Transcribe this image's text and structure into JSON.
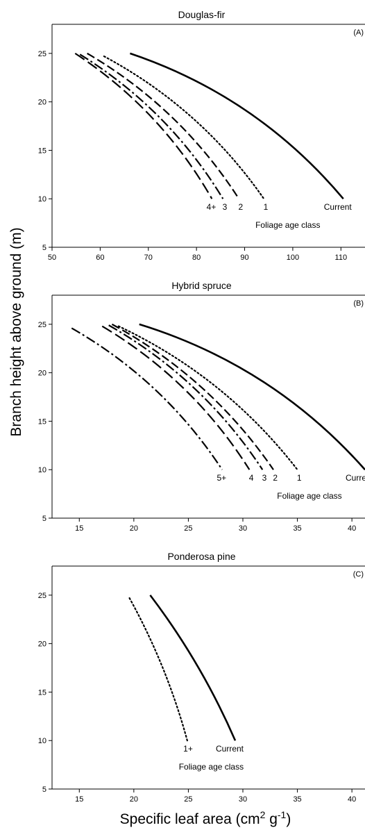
{
  "figure": {
    "ylabel": "Branch height above ground (m)",
    "xlabel_main": "Specific leaf area (cm",
    "xlabel_sup1": "2",
    "xlabel_mid": " g",
    "xlabel_sup2": "-1",
    "xlabel_end": ")"
  },
  "chart_data": [
    {
      "type": "line",
      "title": "Douglas-fir",
      "panel_label": "(A)",
      "annotation": "Foliage age class",
      "xlim": [
        50,
        115
      ],
      "ylim": [
        5,
        28
      ],
      "xticks": [
        50,
        60,
        70,
        80,
        90,
        100,
        110
      ],
      "yticks": [
        5,
        10,
        15,
        20,
        25
      ],
      "series": [
        {
          "name": "Current",
          "style": "solid",
          "x": [
            66.2,
            110.5
          ],
          "y": [
            25,
            10
          ],
          "curvature": 0.14
        },
        {
          "name": "1",
          "style": "dotted",
          "x": [
            60.8,
            94.0
          ],
          "y": [
            24.7,
            10
          ],
          "curvature": 0.12
        },
        {
          "name": "2",
          "style": "dashed",
          "x": [
            57.3,
            88.8
          ],
          "y": [
            25,
            10
          ],
          "curvature": 0.12
        },
        {
          "name": "3",
          "style": "dashdot",
          "x": [
            55.8,
            85.5
          ],
          "y": [
            24.9,
            10
          ],
          "curvature": 0.12
        },
        {
          "name": "4+",
          "style": "longdash",
          "x": [
            54.8,
            83.2
          ],
          "y": [
            25,
            10
          ],
          "curvature": 0.12
        }
      ]
    },
    {
      "type": "line",
      "title": "Hybrid spruce",
      "panel_label": "(B)",
      "annotation": "Foliage age class",
      "xlim": [
        12.5,
        41.2
      ],
      "ylim": [
        5,
        28
      ],
      "xticks": [
        15,
        20,
        25,
        30,
        35,
        40
      ],
      "yticks": [
        5,
        10,
        15,
        20,
        25
      ],
      "series": [
        {
          "name": "Current",
          "style": "solid",
          "x": [
            20.5,
            41.2
          ],
          "y": [
            25,
            10
          ],
          "curvature": 0.14
        },
        {
          "name": "1",
          "style": "dotted",
          "x": [
            18.6,
            35.0
          ],
          "y": [
            24.8,
            10
          ],
          "curvature": 0.12
        },
        {
          "name": "2",
          "style": "dashed",
          "x": [
            18.0,
            32.8
          ],
          "y": [
            25,
            10
          ],
          "curvature": 0.12
        },
        {
          "name": "3",
          "style": "dashdot",
          "x": [
            17.7,
            31.8
          ],
          "y": [
            24.9,
            10
          ],
          "curvature": 0.12
        },
        {
          "name": "4",
          "style": "longdash",
          "x": [
            17.1,
            30.6
          ],
          "y": [
            24.8,
            10
          ],
          "curvature": 0.12
        },
        {
          "name": "5+",
          "style": "dashdot",
          "x": [
            14.3,
            28.1
          ],
          "y": [
            24.6,
            10
          ],
          "curvature": 0.12
        }
      ]
    },
    {
      "type": "line",
      "title": "Ponderosa pine",
      "panel_label": "(C)",
      "annotation": "Foliage age class",
      "xlim": [
        12.5,
        41.2
      ],
      "ylim": [
        5,
        28
      ],
      "xticks": [
        15,
        20,
        25,
        30,
        35,
        40
      ],
      "yticks": [
        5,
        10,
        15,
        20,
        25
      ],
      "series": [
        {
          "name": "Current",
          "style": "solid",
          "x": [
            21.5,
            29.3
          ],
          "y": [
            25,
            10
          ],
          "curvature": 0.06
        },
        {
          "name": "1+",
          "style": "dotted",
          "x": [
            19.6,
            24.9
          ],
          "y": [
            24.7,
            10
          ],
          "curvature": 0.06
        }
      ]
    }
  ]
}
